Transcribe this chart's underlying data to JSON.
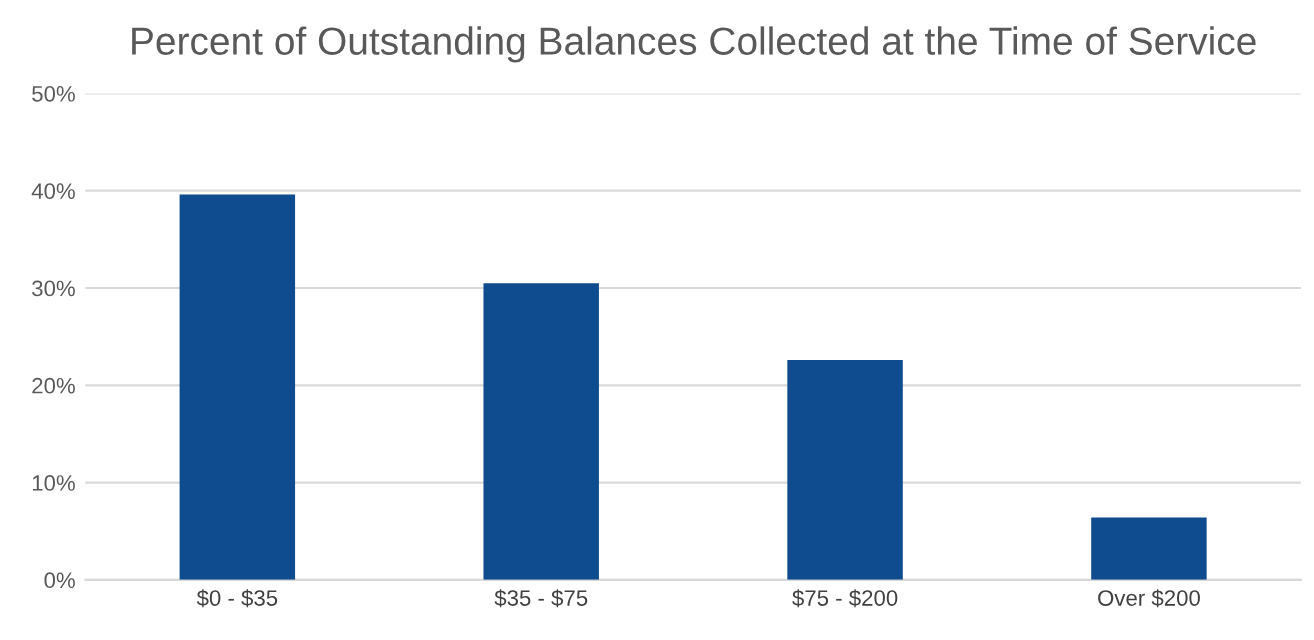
{
  "chart_data": {
    "type": "bar",
    "title": "Percent of Outstanding Balances Collected at the Time of Service",
    "categories": [
      "$0 - $35",
      "$35 - $75",
      "$75 - $200",
      "Over $200"
    ],
    "values": [
      39.6,
      30.5,
      22.6,
      6.4
    ],
    "color": "#0f4b8f",
    "ylim": [
      0,
      50
    ],
    "yticks": [
      {
        "value": 0,
        "label": "0%"
      },
      {
        "value": 10,
        "label": "10%"
      },
      {
        "value": 20,
        "label": "20%"
      },
      {
        "value": 30,
        "label": "30%"
      },
      {
        "value": 40,
        "label": "40%"
      },
      {
        "value": 50,
        "label": "50%"
      }
    ],
    "grid": "y"
  }
}
